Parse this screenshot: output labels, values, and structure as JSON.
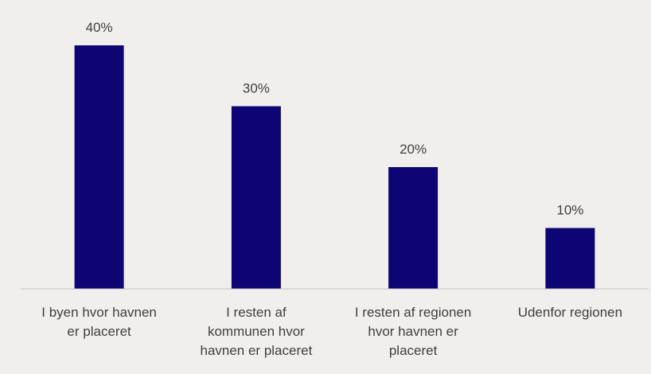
{
  "chart_data": {
    "type": "bar",
    "categories": [
      [
        "I byen hvor havnen",
        "er placeret"
      ],
      [
        "I resten af",
        "kommunen hvor",
        "havnen er placeret"
      ],
      [
        "I resten af regionen",
        "hvor havnen er",
        "placeret"
      ],
      [
        "Udenfor regionen"
      ]
    ],
    "values": [
      40,
      30,
      20,
      10
    ],
    "value_labels": [
      "40%",
      "30%",
      "20%",
      "10%"
    ],
    "title": "",
    "xlabel": "",
    "ylabel": "",
    "ylim": [
      0,
      40
    ],
    "grid": false,
    "legend": "none",
    "bar_color": "#0d0573",
    "axis_color": "#bfbfbf",
    "background": "#f1efee"
  }
}
